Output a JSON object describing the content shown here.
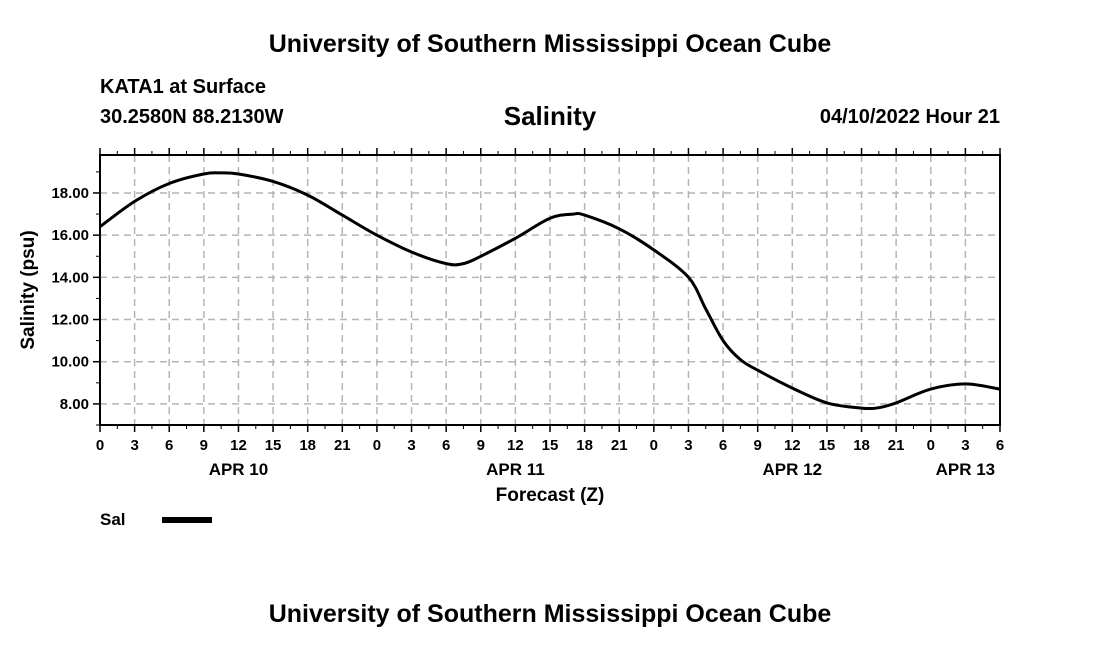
{
  "header": {
    "org_title": "University of Southern Mississippi Ocean Cube",
    "station": "KATA1 at Surface",
    "coordinates": "30.2580N  88.2130W",
    "datetime": "04/10/2022 Hour 21"
  },
  "footer": {
    "org_title": "University of Southern Mississippi Ocean Cube"
  },
  "legend": {
    "label": "Sal",
    "color": "#000000"
  },
  "chart_data": {
    "type": "line",
    "title": "Salinity",
    "xlabel": "Forecast (Z)",
    "ylabel": "Salinity (psu)",
    "xlim": [
      0,
      78
    ],
    "ylim": [
      7,
      19.8
    ],
    "grid": true,
    "x_tick_step_hours": 3,
    "x_tick_labels": [
      "0",
      "3",
      "6",
      "9",
      "12",
      "15",
      "18",
      "21",
      "0",
      "3",
      "6",
      "9",
      "12",
      "15",
      "18",
      "21",
      "0",
      "3",
      "6",
      "9",
      "12",
      "15",
      "18",
      "21",
      "0",
      "3",
      "6"
    ],
    "y_ticks": [
      8,
      10,
      12,
      14,
      16,
      18
    ],
    "y_tick_labels": [
      "8.00",
      "10.00",
      "12.00",
      "14.00",
      "16.00",
      "18.00"
    ],
    "day_labels": [
      {
        "label": "APR 10",
        "x": 12
      },
      {
        "label": "APR 11",
        "x": 36
      },
      {
        "label": "APR 12",
        "x": 60
      },
      {
        "label": "APR 13",
        "x": 75
      }
    ],
    "series": [
      {
        "name": "Sal",
        "color": "#000000",
        "x": [
          0,
          3,
          6,
          9,
          10.5,
          12,
          15,
          18,
          21,
          24,
          27,
          30,
          31.5,
          33,
          36,
          39,
          41,
          42,
          45,
          48,
          51,
          52.5,
          54,
          55.5,
          57,
          60,
          63,
          66,
          67.5,
          69,
          72,
          75,
          78
        ],
        "y": [
          16.4,
          17.6,
          18.45,
          18.9,
          18.95,
          18.9,
          18.55,
          17.9,
          16.95,
          16.0,
          15.2,
          14.65,
          14.65,
          15.0,
          15.85,
          16.8,
          17.0,
          16.95,
          16.3,
          15.3,
          14.0,
          12.5,
          11.0,
          10.1,
          9.6,
          8.75,
          8.05,
          7.8,
          7.82,
          8.05,
          8.7,
          8.95,
          8.7
        ]
      }
    ]
  }
}
